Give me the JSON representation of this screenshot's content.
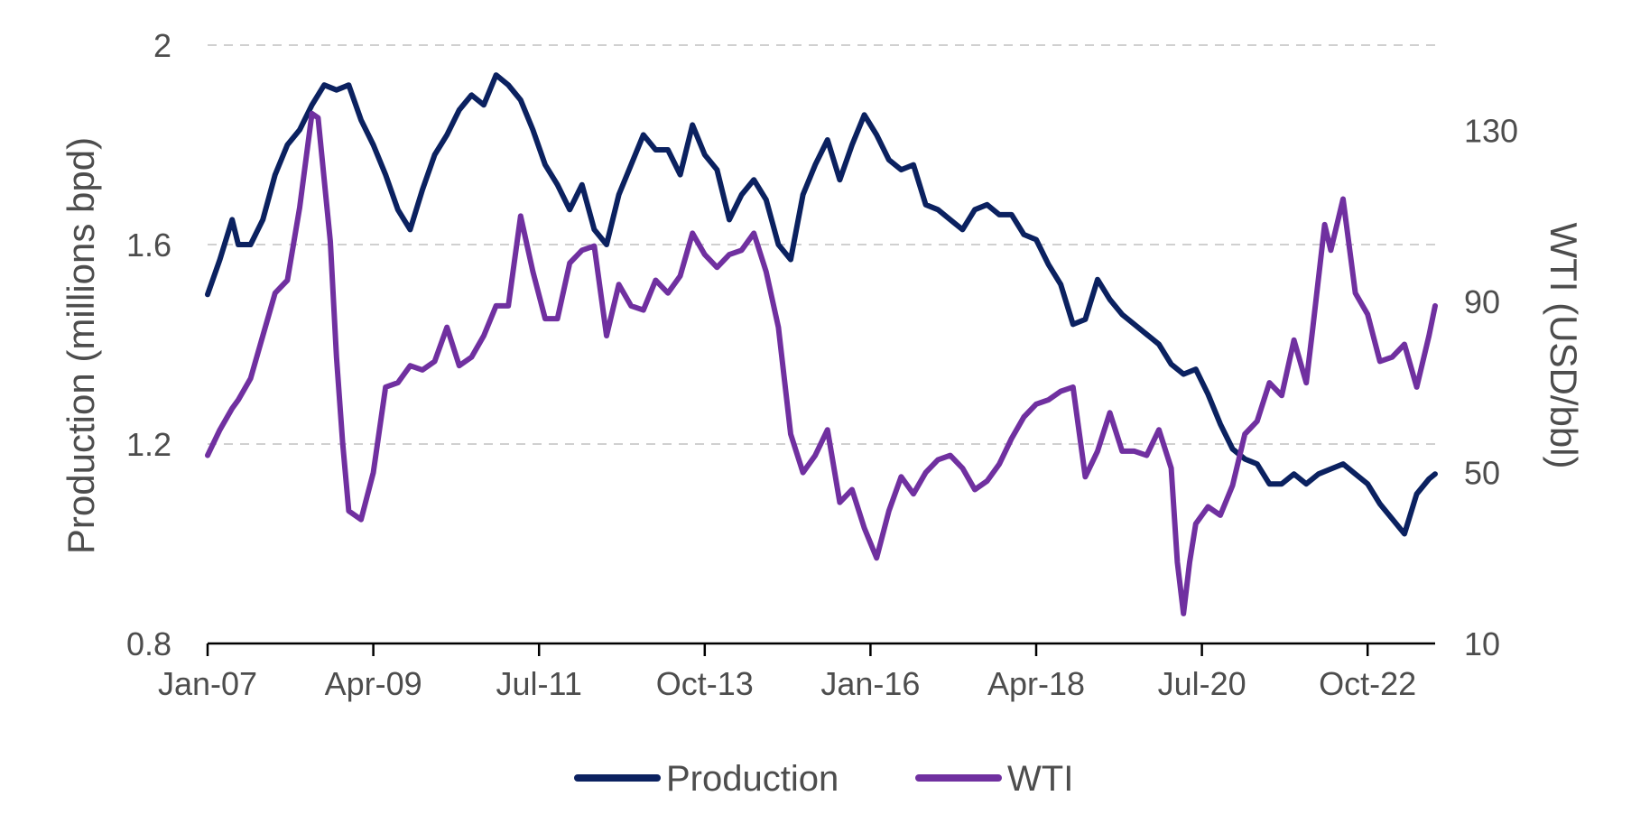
{
  "chart_data": {
    "type": "line",
    "title": "",
    "xlabel": "",
    "ylabel": "Production (millions bpd)",
    "y2label": "WTI (USD/bbl)",
    "x_tick_labels": [
      "Jan-07",
      "Apr-09",
      "Jul-11",
      "Oct-13",
      "Jan-16",
      "Apr-18",
      "Jul-20",
      "Oct-22"
    ],
    "xlim": [
      "2007-01",
      "2023-09"
    ],
    "ylim": [
      0.8,
      2.0
    ],
    "y_ticks": [
      0.8,
      1.2,
      1.6,
      2.0
    ],
    "y_tick_labels": [
      "0.8",
      "1.2",
      "1.6",
      "2"
    ],
    "y2lim": [
      10,
      150
    ],
    "y2_ticks": [
      10,
      50,
      90,
      130
    ],
    "y2_tick_labels": [
      "10",
      "50",
      "90",
      "130"
    ],
    "grid": "horizontal dashed",
    "legend_position": "bottom-center",
    "series": [
      {
        "name": "Production",
        "axis": "left",
        "color": "#0b2160",
        "points": [
          [
            "2007-01",
            1.5
          ],
          [
            "2007-03",
            1.57
          ],
          [
            "2007-05",
            1.65
          ],
          [
            "2007-06",
            1.6
          ],
          [
            "2007-08",
            1.6
          ],
          [
            "2007-10",
            1.65
          ],
          [
            "2007-12",
            1.74
          ],
          [
            "2008-02",
            1.8
          ],
          [
            "2008-04",
            1.83
          ],
          [
            "2008-06",
            1.88
          ],
          [
            "2008-08",
            1.92
          ],
          [
            "2008-10",
            1.91
          ],
          [
            "2008-12",
            1.92
          ],
          [
            "2009-02",
            1.85
          ],
          [
            "2009-04",
            1.8
          ],
          [
            "2009-06",
            1.74
          ],
          [
            "2009-08",
            1.67
          ],
          [
            "2009-10",
            1.63
          ],
          [
            "2009-12",
            1.71
          ],
          [
            "2010-02",
            1.78
          ],
          [
            "2010-04",
            1.82
          ],
          [
            "2010-06",
            1.87
          ],
          [
            "2010-08",
            1.9
          ],
          [
            "2010-10",
            1.88
          ],
          [
            "2010-12",
            1.94
          ],
          [
            "2011-02",
            1.92
          ],
          [
            "2011-04",
            1.89
          ],
          [
            "2011-06",
            1.83
          ],
          [
            "2011-08",
            1.76
          ],
          [
            "2011-10",
            1.72
          ],
          [
            "2011-12",
            1.67
          ],
          [
            "2012-02",
            1.72
          ],
          [
            "2012-04",
            1.63
          ],
          [
            "2012-06",
            1.6
          ],
          [
            "2012-08",
            1.7
          ],
          [
            "2012-10",
            1.76
          ],
          [
            "2012-12",
            1.82
          ],
          [
            "2013-02",
            1.79
          ],
          [
            "2013-04",
            1.79
          ],
          [
            "2013-06",
            1.74
          ],
          [
            "2013-08",
            1.84
          ],
          [
            "2013-10",
            1.78
          ],
          [
            "2013-12",
            1.75
          ],
          [
            "2014-02",
            1.65
          ],
          [
            "2014-04",
            1.7
          ],
          [
            "2014-06",
            1.73
          ],
          [
            "2014-08",
            1.69
          ],
          [
            "2014-10",
            1.6
          ],
          [
            "2014-12",
            1.57
          ],
          [
            "2015-02",
            1.7
          ],
          [
            "2015-04",
            1.76
          ],
          [
            "2015-06",
            1.81
          ],
          [
            "2015-08",
            1.73
          ],
          [
            "2015-10",
            1.8
          ],
          [
            "2015-12",
            1.86
          ],
          [
            "2016-02",
            1.82
          ],
          [
            "2016-04",
            1.77
          ],
          [
            "2016-06",
            1.75
          ],
          [
            "2016-08",
            1.76
          ],
          [
            "2016-10",
            1.68
          ],
          [
            "2016-12",
            1.67
          ],
          [
            "2017-02",
            1.65
          ],
          [
            "2017-04",
            1.63
          ],
          [
            "2017-06",
            1.67
          ],
          [
            "2017-08",
            1.68
          ],
          [
            "2017-10",
            1.66
          ],
          [
            "2017-12",
            1.66
          ],
          [
            "2018-02",
            1.62
          ],
          [
            "2018-04",
            1.61
          ],
          [
            "2018-06",
            1.56
          ],
          [
            "2018-08",
            1.52
          ],
          [
            "2018-10",
            1.44
          ],
          [
            "2018-12",
            1.45
          ],
          [
            "2019-02",
            1.53
          ],
          [
            "2019-04",
            1.49
          ],
          [
            "2019-06",
            1.46
          ],
          [
            "2019-08",
            1.44
          ],
          [
            "2019-10",
            1.42
          ],
          [
            "2019-12",
            1.4
          ],
          [
            "2020-02",
            1.36
          ],
          [
            "2020-04",
            1.34
          ],
          [
            "2020-06",
            1.35
          ],
          [
            "2020-08",
            1.3
          ],
          [
            "2020-10",
            1.24
          ],
          [
            "2020-12",
            1.19
          ],
          [
            "2021-02",
            1.17
          ],
          [
            "2021-04",
            1.16
          ],
          [
            "2021-06",
            1.12
          ],
          [
            "2021-08",
            1.12
          ],
          [
            "2021-10",
            1.14
          ],
          [
            "2021-12",
            1.12
          ],
          [
            "2022-02",
            1.14
          ],
          [
            "2022-04",
            1.15
          ],
          [
            "2022-06",
            1.16
          ],
          [
            "2022-08",
            1.14
          ],
          [
            "2022-10",
            1.12
          ],
          [
            "2022-12",
            1.08
          ],
          [
            "2023-02",
            1.05
          ],
          [
            "2023-04",
            1.02
          ],
          [
            "2023-06",
            1.1
          ],
          [
            "2023-08",
            1.13
          ],
          [
            "2023-09",
            1.14
          ]
        ]
      },
      {
        "name": "WTI",
        "axis": "right",
        "color": "#7030a0",
        "points": [
          [
            "2007-01",
            54
          ],
          [
            "2007-03",
            60
          ],
          [
            "2007-05",
            65
          ],
          [
            "2007-06",
            67
          ],
          [
            "2007-08",
            72
          ],
          [
            "2007-10",
            82
          ],
          [
            "2007-12",
            92
          ],
          [
            "2008-02",
            95
          ],
          [
            "2008-04",
            112
          ],
          [
            "2008-06",
            134
          ],
          [
            "2008-07",
            133
          ],
          [
            "2008-09",
            104
          ],
          [
            "2008-10",
            77
          ],
          [
            "2008-11",
            57
          ],
          [
            "2008-12",
            41
          ],
          [
            "2009-02",
            39
          ],
          [
            "2009-04",
            50
          ],
          [
            "2009-06",
            70
          ],
          [
            "2009-08",
            71
          ],
          [
            "2009-10",
            75
          ],
          [
            "2009-12",
            74
          ],
          [
            "2010-02",
            76
          ],
          [
            "2010-04",
            84
          ],
          [
            "2010-06",
            75
          ],
          [
            "2010-08",
            77
          ],
          [
            "2010-10",
            82
          ],
          [
            "2010-12",
            89
          ],
          [
            "2011-02",
            89
          ],
          [
            "2011-04",
            110
          ],
          [
            "2011-06",
            97
          ],
          [
            "2011-08",
            86
          ],
          [
            "2011-10",
            86
          ],
          [
            "2011-12",
            99
          ],
          [
            "2012-02",
            102
          ],
          [
            "2012-04",
            103
          ],
          [
            "2012-06",
            82
          ],
          [
            "2012-08",
            94
          ],
          [
            "2012-10",
            89
          ],
          [
            "2012-12",
            88
          ],
          [
            "2013-02",
            95
          ],
          [
            "2013-04",
            92
          ],
          [
            "2013-06",
            96
          ],
          [
            "2013-08",
            106
          ],
          [
            "2013-10",
            101
          ],
          [
            "2013-12",
            98
          ],
          [
            "2014-02",
            101
          ],
          [
            "2014-04",
            102
          ],
          [
            "2014-06",
            106
          ],
          [
            "2014-08",
            97
          ],
          [
            "2014-10",
            84
          ],
          [
            "2014-12",
            59
          ],
          [
            "2015-02",
            50
          ],
          [
            "2015-04",
            54
          ],
          [
            "2015-06",
            60
          ],
          [
            "2015-08",
            43
          ],
          [
            "2015-10",
            46
          ],
          [
            "2015-12",
            37
          ],
          [
            "2016-02",
            30
          ],
          [
            "2016-04",
            41
          ],
          [
            "2016-06",
            49
          ],
          [
            "2016-08",
            45
          ],
          [
            "2016-10",
            50
          ],
          [
            "2016-12",
            53
          ],
          [
            "2017-02",
            54
          ],
          [
            "2017-04",
            51
          ],
          [
            "2017-06",
            46
          ],
          [
            "2017-08",
            48
          ],
          [
            "2017-10",
            52
          ],
          [
            "2017-12",
            58
          ],
          [
            "2018-02",
            63
          ],
          [
            "2018-04",
            66
          ],
          [
            "2018-06",
            67
          ],
          [
            "2018-08",
            69
          ],
          [
            "2018-10",
            70
          ],
          [
            "2018-12",
            49
          ],
          [
            "2019-02",
            55
          ],
          [
            "2019-04",
            64
          ],
          [
            "2019-06",
            55
          ],
          [
            "2019-08",
            55
          ],
          [
            "2019-10",
            54
          ],
          [
            "2019-12",
            60
          ],
          [
            "2020-02",
            51
          ],
          [
            "2020-03",
            29
          ],
          [
            "2020-04",
            17
          ],
          [
            "2020-05",
            29
          ],
          [
            "2020-06",
            38
          ],
          [
            "2020-08",
            42
          ],
          [
            "2020-10",
            40
          ],
          [
            "2020-12",
            47
          ],
          [
            "2021-02",
            59
          ],
          [
            "2021-04",
            62
          ],
          [
            "2021-06",
            71
          ],
          [
            "2021-08",
            68
          ],
          [
            "2021-10",
            81
          ],
          [
            "2021-12",
            71
          ],
          [
            "2022-01",
            83
          ],
          [
            "2022-03",
            108
          ],
          [
            "2022-04",
            102
          ],
          [
            "2022-06",
            114
          ],
          [
            "2022-08",
            92
          ],
          [
            "2022-10",
            87
          ],
          [
            "2022-12",
            76
          ],
          [
            "2023-02",
            77
          ],
          [
            "2023-04",
            80
          ],
          [
            "2023-06",
            70
          ],
          [
            "2023-08",
            82
          ],
          [
            "2023-09",
            89
          ]
        ]
      }
    ]
  }
}
